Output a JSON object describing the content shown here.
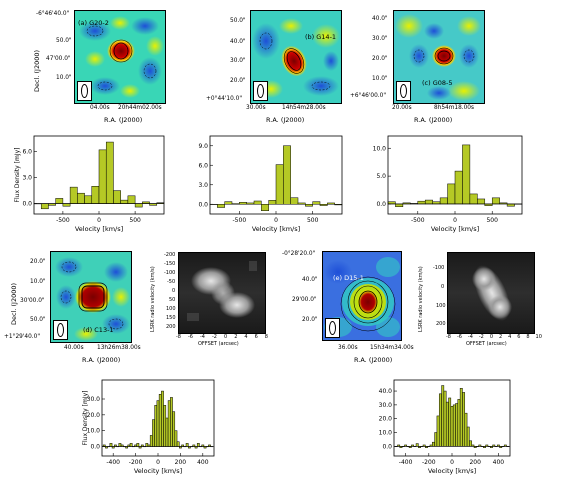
{
  "panels": {
    "g20": {
      "label": "(a) G20-2",
      "yticks": [
        "-6°46'40.0\"",
        "50.0\"",
        "47'00.0\"",
        "10.0\""
      ],
      "xticks": [
        "04.00s",
        "20h44m02.00s"
      ],
      "ylabel": "Decl. (J2000)",
      "xlabel": "R.A. (J2000)"
    },
    "g14": {
      "label": "(b) G14-1",
      "yticks": [
        "50.0\"",
        "40.0\"",
        "30.0\"",
        "20.0\"",
        "+0°44'10.0\""
      ],
      "xticks": [
        "30.00s",
        "14h54m28.00s"
      ],
      "xlabel": "R.A. (J2000)"
    },
    "g08": {
      "label": "(c) G08-5",
      "yticks": [
        "40.0\"",
        "30.0\"",
        "20.0\"",
        "10.0\"",
        "+6°46'00.0\""
      ],
      "xticks": [
        "20.00s",
        "8h54m18.00s"
      ],
      "xlabel": "R.A. (J2000)"
    },
    "c13": {
      "label": "(d) C13-1",
      "yticks": [
        "20.0\"",
        "10.0\"",
        "30'00.0\"",
        "50.0\"",
        "+1°29'40.0\""
      ],
      "xticks": [
        "40.00s",
        "13h26m38.00s"
      ],
      "ylabel": "Decl. (J2000)",
      "xlabel": "R.A. (J2000)"
    },
    "d15": {
      "label": "(e) D15-1",
      "yticks": [
        "-0°28'20.0\"",
        "40.0\"",
        "29'00.0\"",
        "20.0\""
      ],
      "xticks": [
        "36.00s",
        "15h34m34.00s"
      ],
      "xlabel": "R.A. (J2000)"
    },
    "pv1": {
      "ylabel": "LSRK radio velocity (km/s)",
      "yticks": [
        "-200",
        "-150",
        "-100",
        "-50",
        "0",
        "50",
        "100",
        "150",
        "200"
      ],
      "xticks": [
        "-8",
        "-6",
        "-4",
        "-2",
        "0",
        "2",
        "4",
        "6",
        "8"
      ],
      "xlabel": "OFFSET (arcsec)"
    },
    "pv2": {
      "ylabel": "LSRK radio velocity (km/s)",
      "yticks": [
        "-100",
        "0",
        "100",
        "200"
      ],
      "xticks": [
        "-8",
        "-6",
        "-4",
        "-2",
        "0",
        "2",
        "4",
        "6",
        "8",
        "10"
      ],
      "xlabel": "OFFSET (arcsec)"
    }
  },
  "chart_data": [
    {
      "id": "spec_a",
      "type": "bar",
      "xlabel": "Velocity [km/s]",
      "ylabel": "Flux Density [mJy]",
      "xlim": [
        -900,
        900
      ],
      "ylim": [
        -1.2,
        7.8
      ],
      "xticks": [
        -500,
        0,
        500
      ],
      "yticks": [
        0,
        3,
        6
      ],
      "x": [
        -850,
        -750,
        -650,
        -550,
        -450,
        -350,
        -250,
        -150,
        -50,
        50,
        150,
        250,
        350,
        450,
        550,
        650,
        750,
        850
      ],
      "values": [
        0.0,
        -0.6,
        -0.2,
        0.6,
        -0.3,
        1.9,
        1.2,
        0.9,
        2.0,
        6.2,
        7.1,
        1.5,
        0.4,
        0.9,
        -0.4,
        0.2,
        -0.2,
        0.1
      ]
    },
    {
      "id": "spec_b",
      "type": "bar",
      "xlabel": "Velocity [km/s]",
      "xlim": [
        -900,
        900
      ],
      "ylim": [
        -1.5,
        10.5
      ],
      "xticks": [
        -500,
        0,
        500
      ],
      "yticks": [
        0,
        3,
        6,
        9
      ],
      "x": [
        -850,
        -750,
        -650,
        -550,
        -450,
        -350,
        -250,
        -150,
        -50,
        50,
        150,
        250,
        350,
        450,
        550,
        650,
        750,
        850
      ],
      "values": [
        0.0,
        -0.5,
        0.4,
        0.1,
        0.3,
        0.2,
        0.5,
        -1.0,
        0.6,
        6.1,
        9.0,
        1.0,
        0.2,
        -0.3,
        0.4,
        -0.2,
        0.2,
        -0.1
      ]
    },
    {
      "id": "spec_c",
      "type": "bar",
      "xlabel": "Velocity [km/s]",
      "xlim": [
        -900,
        900
      ],
      "ylim": [
        -1.8,
        12.2
      ],
      "xticks": [
        -500,
        0,
        500
      ],
      "yticks": [
        0,
        5,
        10
      ],
      "x": [
        -850,
        -750,
        -650,
        -550,
        -450,
        -350,
        -250,
        -150,
        -50,
        50,
        150,
        250,
        350,
        450,
        550,
        650,
        750,
        850
      ],
      "values": [
        0.4,
        -0.5,
        0.2,
        0.1,
        0.5,
        0.7,
        0.4,
        1.1,
        3.6,
        5.9,
        10.6,
        1.8,
        0.9,
        -0.3,
        1.1,
        0.2,
        -0.4,
        0.0
      ]
    },
    {
      "id": "spec_d",
      "type": "bar",
      "xlabel": "Velocity [km/s]",
      "ylabel": "Flux Density [mJy]",
      "xlim": [
        -500,
        500
      ],
      "ylim": [
        -6,
        42
      ],
      "xticks": [
        -400,
        -200,
        0,
        200,
        400
      ],
      "yticks": [
        0,
        10,
        20,
        30
      ],
      "x": [
        -480,
        -460,
        -440,
        -420,
        -400,
        -380,
        -360,
        -340,
        -320,
        -300,
        -280,
        -260,
        -240,
        -220,
        -200,
        -180,
        -160,
        -140,
        -120,
        -100,
        -80,
        -60,
        -40,
        -20,
        0,
        20,
        40,
        60,
        80,
        100,
        120,
        140,
        160,
        180,
        200,
        220,
        240,
        260,
        280,
        300,
        320,
        340,
        360,
        380,
        400,
        420,
        440,
        460,
        480
      ],
      "values": [
        1,
        -1,
        0,
        2,
        -1,
        1,
        0,
        2,
        1,
        0,
        -1,
        1,
        2,
        0,
        1,
        2,
        -1,
        1,
        0,
        2,
        1,
        7,
        17,
        26,
        29,
        33,
        35,
        26,
        18,
        29,
        31,
        22,
        10,
        3,
        -1,
        1,
        0,
        2,
        -1,
        0,
        1,
        -1,
        2,
        0,
        1,
        -1,
        0,
        1,
        0
      ]
    },
    {
      "id": "spec_e",
      "type": "bar",
      "xlabel": "Velocity [km/s]",
      "xlim": [
        -500,
        500
      ],
      "ylim": [
        -7,
        48
      ],
      "xticks": [
        -400,
        -200,
        0,
        200,
        400
      ],
      "yticks": [
        0,
        10,
        20,
        30,
        40
      ],
      "x": [
        -480,
        -460,
        -440,
        -420,
        -400,
        -380,
        -360,
        -340,
        -320,
        -300,
        -280,
        -260,
        -240,
        -220,
        -200,
        -180,
        -160,
        -140,
        -120,
        -100,
        -80,
        -60,
        -40,
        -20,
        0,
        20,
        40,
        60,
        80,
        100,
        120,
        140,
        160,
        180,
        200,
        220,
        240,
        260,
        280,
        300,
        320,
        340,
        360,
        380,
        400,
        420,
        440,
        460,
        480
      ],
      "values": [
        0,
        1,
        -1,
        0,
        1,
        0,
        -1,
        1,
        0,
        2,
        -1,
        0,
        1,
        -1,
        0,
        1,
        3,
        10,
        22,
        38,
        44,
        40,
        32,
        35,
        29,
        30,
        31,
        34,
        42,
        39,
        24,
        14,
        4,
        1,
        -1,
        0,
        1,
        0,
        -1,
        1,
        0,
        -1,
        1,
        0,
        1,
        -1,
        0,
        1,
        0
      ]
    }
  ],
  "colors": {
    "bar_fill": "#b5c925",
    "axis": "#000000"
  }
}
